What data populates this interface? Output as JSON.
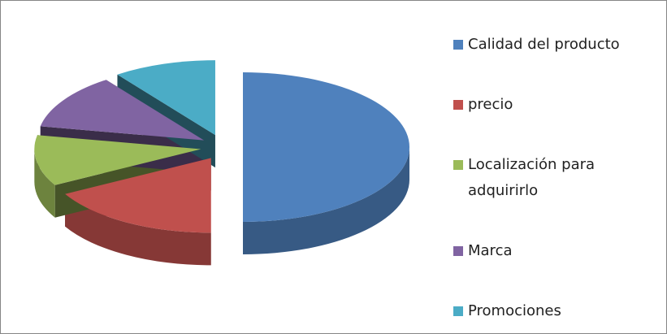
{
  "chart_data": {
    "type": "pie",
    "categories": [
      "Calidad del producto",
      "precio",
      "Localización para adquirirlo",
      "Marca",
      "Promociones"
    ],
    "values": [
      50,
      17,
      11,
      12,
      10
    ],
    "colors": [
      "#4f81bd",
      "#c0504d",
      "#9bbb59",
      "#8064a2",
      "#4bacc6"
    ]
  }
}
